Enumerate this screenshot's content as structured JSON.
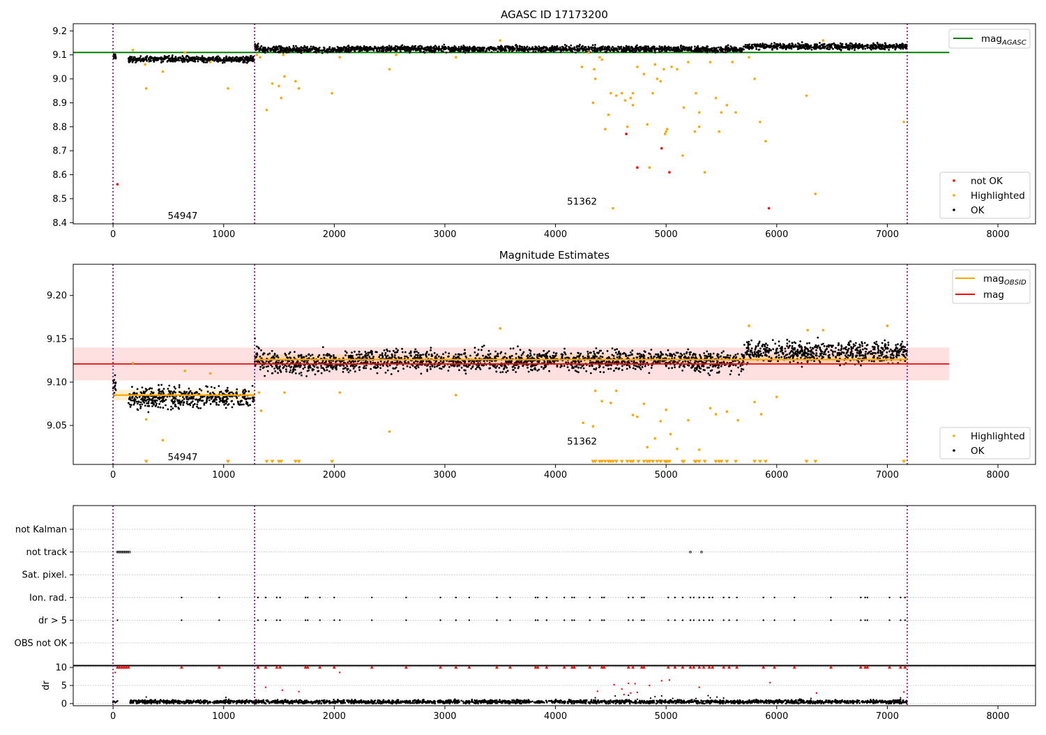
{
  "figure": {
    "title_top": "AGASC ID 17173200",
    "title_middle": "Magnitude Estimates"
  },
  "colors": {
    "ok": "#000000",
    "highlighted": "#ffa500",
    "not_ok": "#ff0000",
    "agasc_line": "#008000",
    "mag_line": "#ff0000",
    "mag_obsid_line": "#ffa500",
    "obs_boundary": "#800080",
    "grid": "#b0b0b0",
    "mag_band": "#ff0000"
  },
  "chart_data": [
    {
      "id": "top",
      "type": "scatter",
      "title": "AGASC ID 17173200",
      "xlim": [
        -360,
        8340
      ],
      "ylim": [
        8.395,
        9.23
      ],
      "xticks": [
        0,
        1000,
        2000,
        3000,
        4000,
        5000,
        6000,
        7000,
        8000
      ],
      "xtick_labels": [
        "0",
        "1000",
        "2000",
        "3000",
        "4000",
        "5000",
        "6000",
        "7000",
        "8000"
      ],
      "yticks": [
        8.4,
        8.5,
        8.6,
        8.7,
        8.8,
        8.9,
        9.0,
        9.1,
        9.2
      ],
      "ytick_labels": [
        "8.4",
        "8.5",
        "8.6",
        "8.7",
        "8.8",
        "8.9",
        "9.0",
        "9.1",
        "9.2"
      ],
      "agasc_mag": 9.11,
      "agasc_line_x": [
        -360,
        7560
      ],
      "obs_boundaries": [
        0,
        1280,
        7180
      ],
      "obs_labels": [
        {
          "text": "54947",
          "x": 630,
          "y": 8.43
        },
        {
          "text": "51362",
          "x": 4240,
          "y": 8.49
        }
      ],
      "ok_segments": [
        {
          "x": [
            0,
            30
          ],
          "mean": 9.095,
          "spread": 0.012
        },
        {
          "x": [
            140,
            1275
          ],
          "mean": 9.082,
          "spread": 0.012
        },
        {
          "x": [
            1280,
            1320
          ],
          "mean": 9.13,
          "spread": 0.014
        },
        {
          "x": [
            1320,
            2100
          ],
          "mean": 9.122,
          "spread": 0.012
        },
        {
          "x": [
            2100,
            5200
          ],
          "mean": 9.125,
          "spread": 0.012
        },
        {
          "x": [
            5200,
            5700
          ],
          "mean": 9.123,
          "spread": 0.012
        },
        {
          "x": [
            5700,
            7180
          ],
          "mean": 9.135,
          "spread": 0.012
        }
      ],
      "highlighted_points": [
        [
          180,
          9.12
        ],
        [
          290,
          9.06
        ],
        [
          300,
          8.96
        ],
        [
          450,
          9.03
        ],
        [
          650,
          9.11
        ],
        [
          880,
          9.07
        ],
        [
          1040,
          8.96
        ],
        [
          1300,
          9.1
        ],
        [
          1330,
          9.09
        ],
        [
          1390,
          8.87
        ],
        [
          1440,
          8.98
        ],
        [
          1500,
          8.97
        ],
        [
          1520,
          8.92
        ],
        [
          1540,
          9.1
        ],
        [
          1550,
          9.01
        ],
        [
          1650,
          8.99
        ],
        [
          1680,
          8.96
        ],
        [
          1980,
          8.94
        ],
        [
          2050,
          9.09
        ],
        [
          2500,
          9.04
        ],
        [
          2560,
          9.1
        ],
        [
          3100,
          9.09
        ],
        [
          3500,
          9.16
        ],
        [
          4240,
          9.05
        ],
        [
          4300,
          9.11
        ],
        [
          4340,
          8.9
        ],
        [
          4350,
          9.04
        ],
        [
          4360,
          9.0
        ],
        [
          4400,
          9.09
        ],
        [
          4420,
          9.08
        ],
        [
          4450,
          8.79
        ],
        [
          4480,
          8.85
        ],
        [
          4500,
          8.94
        ],
        [
          4520,
          8.46
        ],
        [
          4550,
          8.93
        ],
        [
          4600,
          8.94
        ],
        [
          4630,
          8.91
        ],
        [
          4650,
          8.8
        ],
        [
          4680,
          8.92
        ],
        [
          4700,
          8.94
        ],
        [
          4700,
          8.89
        ],
        [
          4740,
          9.05
        ],
        [
          4800,
          9.02
        ],
        [
          4830,
          8.81
        ],
        [
          4850,
          8.63
        ],
        [
          4880,
          8.94
        ],
        [
          4900,
          9.06
        ],
        [
          4920,
          9.0
        ],
        [
          4950,
          8.99
        ],
        [
          4980,
          9.04
        ],
        [
          4990,
          8.77
        ],
        [
          5000,
          8.78
        ],
        [
          5010,
          8.79
        ],
        [
          5050,
          9.05
        ],
        [
          5100,
          9.04
        ],
        [
          5150,
          8.68
        ],
        [
          5160,
          8.88
        ],
        [
          5200,
          9.07
        ],
        [
          5260,
          8.78
        ],
        [
          5270,
          8.94
        ],
        [
          5300,
          8.8
        ],
        [
          5300,
          8.86
        ],
        [
          5350,
          8.61
        ],
        [
          5400,
          9.07
        ],
        [
          5450,
          8.92
        ],
        [
          5480,
          8.78
        ],
        [
          5500,
          8.86
        ],
        [
          5550,
          8.89
        ],
        [
          5600,
          9.07
        ],
        [
          5630,
          8.86
        ],
        [
          5750,
          9.09
        ],
        [
          5800,
          9.0
        ],
        [
          5850,
          8.82
        ],
        [
          5900,
          8.74
        ],
        [
          6270,
          8.93
        ],
        [
          6350,
          8.52
        ],
        [
          6420,
          9.16
        ],
        [
          7150,
          8.82
        ]
      ],
      "not_ok_points": [
        [
          40,
          8.56
        ],
        [
          4640,
          8.77
        ],
        [
          4740,
          8.63
        ],
        [
          4960,
          8.71
        ],
        [
          5030,
          8.61
        ],
        [
          5930,
          8.46
        ]
      ],
      "legend": {
        "entries": [
          "mag_{AGASC}"
        ],
        "location": "upper right"
      },
      "legend_points": {
        "entries": [
          "not OK",
          "Highlighted",
          "OK"
        ],
        "location": "lower right"
      }
    },
    {
      "id": "middle",
      "type": "scatter",
      "title": "Magnitude Estimates",
      "xlim": [
        -360,
        8340
      ],
      "ylim": [
        9.005,
        9.236
      ],
      "xticks": [
        0,
        1000,
        2000,
        3000,
        4000,
        5000,
        6000,
        7000,
        8000
      ],
      "xtick_labels": [
        "0",
        "1000",
        "2000",
        "3000",
        "4000",
        "5000",
        "6000",
        "7000",
        "8000"
      ],
      "yticks": [
        9.05,
        9.1,
        9.15,
        9.2
      ],
      "ytick_labels": [
        "9.05",
        "9.10",
        "9.15",
        "9.20"
      ],
      "mag": 9.121,
      "mag_band": [
        9.102,
        9.14
      ],
      "mag_line_x": [
        -360,
        7560
      ],
      "mag_obsid": [
        {
          "x": [
            0,
            1280
          ],
          "value": 9.085,
          "band": [
            9.079,
            9.091
          ]
        },
        {
          "x": [
            1280,
            7180
          ],
          "value": 9.126,
          "band": [
            9.12,
            9.132
          ]
        }
      ],
      "obs_boundaries": [
        0,
        1280,
        7180
      ],
      "obs_labels": [
        {
          "text": "54947",
          "x": 630,
          "y": 9.014
        },
        {
          "text": "51362",
          "x": 4240,
          "y": 9.032
        }
      ],
      "highlighted_points": [
        [
          180,
          9.122
        ],
        [
          300,
          9.057
        ],
        [
          450,
          9.033
        ],
        [
          650,
          9.113
        ],
        [
          880,
          9.11
        ],
        [
          1320,
          9.088
        ],
        [
          1340,
          9.067
        ],
        [
          1550,
          9.088
        ],
        [
          2050,
          9.088
        ],
        [
          2500,
          9.043
        ],
        [
          3100,
          9.085
        ],
        [
          3500,
          9.162
        ],
        [
          4250,
          9.053
        ],
        [
          4340,
          9.049
        ],
        [
          4360,
          9.09
        ],
        [
          4420,
          9.078
        ],
        [
          4500,
          9.076
        ],
        [
          4550,
          9.09
        ],
        [
          4700,
          9.062
        ],
        [
          4740,
          9.06
        ],
        [
          4800,
          9.075
        ],
        [
          4830,
          9.025
        ],
        [
          4900,
          9.035
        ],
        [
          4950,
          9.055
        ],
        [
          5000,
          9.068
        ],
        [
          5040,
          9.04
        ],
        [
          5100,
          9.023
        ],
        [
          5200,
          9.056
        ],
        [
          5300,
          9.022
        ],
        [
          5400,
          9.07
        ],
        [
          5450,
          9.063
        ],
        [
          5550,
          9.066
        ],
        [
          5650,
          9.056
        ],
        [
          5750,
          9.165
        ],
        [
          5800,
          9.077
        ],
        [
          5860,
          9.063
        ],
        [
          6000,
          9.083
        ],
        [
          6280,
          9.16
        ],
        [
          6420,
          9.16
        ],
        [
          7000,
          9.165
        ]
      ],
      "lower_limit_markers_x": [
        300,
        1040,
        1390,
        1440,
        1500,
        1520,
        1650,
        1680,
        1980,
        4340,
        4360,
        4400,
        4420,
        4450,
        4480,
        4500,
        4520,
        4550,
        4600,
        4650,
        4680,
        4700,
        4750,
        4800,
        4830,
        4850,
        4880,
        4920,
        4950,
        4990,
        5000,
        5010,
        5030,
        5150,
        5160,
        5260,
        5270,
        5300,
        5350,
        5450,
        5480,
        5500,
        5550,
        5630,
        5800,
        5850,
        5900,
        6270,
        6350,
        7150
      ],
      "legend": {
        "entries": [
          "mag_{OBSID}",
          "mag"
        ],
        "location": "upper right"
      },
      "legend_points": {
        "entries": [
          "Highlighted",
          "OK"
        ],
        "location": "lower right"
      }
    },
    {
      "id": "flags",
      "type": "scatter",
      "xlim": [
        -360,
        8340
      ],
      "ycategories": [
        "not Kalman",
        "not track",
        "Sat. pixel.",
        "Ion. rad.",
        "dr > 5",
        "OBS not OK"
      ],
      "obs_boundaries": [
        0,
        1280,
        7180
      ],
      "not_track_x": [
        40,
        50,
        60,
        70,
        80,
        90,
        100,
        110,
        120,
        130,
        140,
        150,
        5220,
        5320
      ],
      "ion_rad_x": [
        620,
        960,
        1310,
        1380,
        1480,
        1510,
        1740,
        1760,
        1870,
        2000,
        2340,
        2650,
        2960,
        3100,
        3220,
        3470,
        3590,
        3820,
        3840,
        3920,
        4080,
        4150,
        4170,
        4310,
        4420,
        4440,
        4660,
        4700,
        4780,
        4800,
        5020,
        5080,
        5150,
        5220,
        5250,
        5300,
        5340,
        5390,
        5420,
        5520,
        5570,
        5640,
        5880,
        5980,
        6160,
        6490,
        6760,
        6800,
        6820,
        7020,
        7120,
        7160
      ],
      "dr5_x": [
        40,
        620,
        960,
        1310,
        1380,
        1480,
        1510,
        1740,
        1760,
        1870,
        2000,
        2050,
        2340,
        2650,
        2960,
        3100,
        3220,
        3470,
        3590,
        3820,
        3840,
        3920,
        4080,
        4150,
        4170,
        4310,
        4420,
        4440,
        4660,
        4700,
        4780,
        4800,
        5020,
        5080,
        5150,
        5220,
        5250,
        5300,
        5340,
        5390,
        5420,
        5520,
        5570,
        5640,
        5880,
        5980,
        6160,
        6490,
        6760,
        6800,
        6820,
        7020,
        7120,
        7160
      ]
    },
    {
      "id": "dr",
      "type": "scatter",
      "ylabel": "dr",
      "xlim": [
        -360,
        8340
      ],
      "ylim": [
        -0.6,
        10.6
      ],
      "xticks": [
        0,
        1000,
        2000,
        3000,
        4000,
        5000,
        6000,
        7000,
        8000
      ],
      "xtick_labels": [
        "0",
        "1000",
        "2000",
        "3000",
        "4000",
        "5000",
        "6000",
        "7000",
        "8000"
      ],
      "yticks": [
        0,
        5,
        10
      ],
      "ytick_labels": [
        "0",
        "5",
        "10"
      ],
      "obs_boundaries": [
        0,
        1280,
        7180
      ],
      "dr_baseline": {
        "mean": 0.5,
        "spread": 0.25,
        "x": [
          150,
          7180
        ]
      },
      "dr_start_points": [
        [
          0,
          0.4
        ],
        [
          10,
          0.6
        ],
        [
          20,
          0.3
        ],
        [
          30,
          0.5
        ],
        [
          40,
          0.7
        ]
      ],
      "dr_ok_scattered": [
        [
          300,
          1.8
        ],
        [
          1020,
          1.7
        ],
        [
          4360,
          1.6
        ],
        [
          4540,
          2.1
        ],
        [
          4660,
          2.3
        ],
        [
          4740,
          1.2
        ],
        [
          4860,
          1.5
        ],
        [
          4900,
          1.9
        ],
        [
          4960,
          2.1
        ],
        [
          5060,
          1.4
        ],
        [
          5270,
          1.4
        ],
        [
          5380,
          2.2
        ],
        [
          5400,
          1.6
        ],
        [
          5460,
          1.8
        ],
        [
          5520,
          1.5
        ],
        [
          6310,
          1.4
        ],
        [
          7120,
          1.6
        ],
        [
          1560,
          1.1
        ]
      ],
      "dr_not_ok_points": [
        [
          20,
          8.6
        ],
        [
          1380,
          4.5
        ],
        [
          1530,
          3.7
        ],
        [
          1680,
          3.3
        ],
        [
          2050,
          8.6
        ],
        [
          4380,
          3.4
        ],
        [
          4530,
          5.2
        ],
        [
          4600,
          4.0
        ],
        [
          4620,
          2.5
        ],
        [
          4660,
          5.6
        ],
        [
          4680,
          2.9
        ],
        [
          4720,
          5.5
        ],
        [
          4740,
          3.1
        ],
        [
          4850,
          5.0
        ],
        [
          4960,
          6.3
        ],
        [
          5030,
          6.5
        ],
        [
          5300,
          4.5
        ],
        [
          5940,
          5.8
        ],
        [
          6360,
          2.9
        ],
        [
          7150,
          3.2
        ]
      ],
      "dr_clipped_x": [
        40,
        60,
        80,
        100,
        120,
        140,
        620,
        960,
        1310,
        1380,
        1480,
        1510,
        1740,
        1760,
        1870,
        2000,
        2340,
        2650,
        2960,
        3100,
        3220,
        3470,
        3590,
        3820,
        3840,
        3920,
        4080,
        4150,
        4170,
        4310,
        4420,
        4440,
        4660,
        4700,
        4780,
        4800,
        5020,
        5080,
        5150,
        5220,
        5250,
        5300,
        5340,
        5390,
        5420,
        5520,
        5570,
        5640,
        5880,
        5980,
        6160,
        6490,
        6760,
        6800,
        6820,
        7020,
        7120,
        7160
      ],
      "legend": null
    }
  ],
  "legends": {
    "top_line": {
      "main": "mag",
      "sub": "AGASC"
    },
    "top_points": {
      "not_ok": "not OK",
      "highlighted": "Highlighted",
      "ok": "OK"
    },
    "middle_lines": {
      "obsid_main": "mag",
      "obsid_sub": "OBSID",
      "mag": "mag"
    },
    "middle_points": {
      "highlighted": "Highlighted",
      "ok": "OK"
    }
  }
}
